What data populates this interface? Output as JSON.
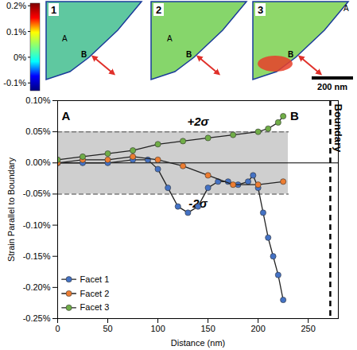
{
  "chart_data": {
    "type": "line",
    "x_label": "Distance (nm)",
    "y_label": "Strain Parallel to Boundary",
    "xlim": [
      0,
      280
    ],
    "xticks": [
      0,
      50,
      100,
      150,
      200,
      250
    ],
    "ylim": [
      -0.25,
      0.1
    ],
    "yticks": [
      {
        "value": -0.25,
        "label": "-0.25%"
      },
      {
        "value": -0.2,
        "label": "-0.20%"
      },
      {
        "value": -0.15,
        "label": "-0.15%"
      },
      {
        "value": -0.1,
        "label": "-0.10%"
      },
      {
        "value": -0.05,
        "label": "-0.05%"
      },
      {
        "value": 0,
        "label": "0.00%"
      },
      {
        "value": 0.05,
        "label": "0.05%"
      },
      {
        "value": 0.1,
        "label": "0.10%"
      }
    ],
    "legend": "bottom-left",
    "marker": "circle",
    "series": [
      {
        "name": "Facet 1",
        "color": "#4472c4",
        "x": [
          0,
          25,
          50,
          75,
          90,
          100,
          110,
          120,
          130,
          140,
          150,
          160,
          170,
          180,
          190,
          195,
          200,
          205,
          210,
          215,
          220,
          225
        ],
        "values": [
          0,
          0,
          0,
          0.005,
          0.005,
          -0.01,
          -0.04,
          -0.07,
          -0.08,
          -0.07,
          -0.04,
          -0.03,
          -0.03,
          -0.035,
          -0.03,
          -0.02,
          -0.04,
          -0.08,
          -0.12,
          -0.15,
          -0.18,
          -0.22
        ]
      },
      {
        "name": "Facet 2",
        "color": "#ed7d31",
        "x": [
          0,
          25,
          50,
          75,
          100,
          125,
          150,
          175,
          200,
          225
        ],
        "values": [
          0,
          0.005,
          0.005,
          0.01,
          0.005,
          -0.005,
          -0.02,
          -0.035,
          -0.035,
          -0.03
        ]
      },
      {
        "name": "Facet 3",
        "color": "#70ad47",
        "x": [
          0,
          25,
          50,
          75,
          100,
          125,
          150,
          175,
          200,
          210,
          220,
          225
        ],
        "values": [
          0.005,
          0.01,
          0.015,
          0.02,
          0.03,
          0.035,
          0.04,
          0.045,
          0.05,
          0.055,
          0.065,
          0.075
        ]
      }
    ],
    "band": {
      "x": [
        0,
        230
      ],
      "y": [
        -0.05,
        0.05
      ],
      "labels": [
        "-2σ",
        "+2σ"
      ],
      "label_x": 140
    },
    "annotations": [
      {
        "text": "A",
        "x": 4,
        "y": 0.075
      },
      {
        "text": "B",
        "x": 232,
        "y": 0.075
      }
    ],
    "boundary": {
      "x": 272,
      "label": "Boundary"
    }
  },
  "image_panels": {
    "panels": [
      "1",
      "2",
      "3"
    ],
    "point_labels": [
      "A",
      "B"
    ],
    "scale_bar": "200 nm",
    "colorbar": {
      "range": [
        -0.13,
        0.21
      ],
      "ticks": [
        {
          "value": 0.2,
          "label": "0.2%"
        },
        {
          "value": 0.1,
          "label": "0.1%"
        },
        {
          "value": 0,
          "label": "0%"
        },
        {
          "value": -0.1,
          "label": "-0.1%"
        }
      ]
    }
  }
}
